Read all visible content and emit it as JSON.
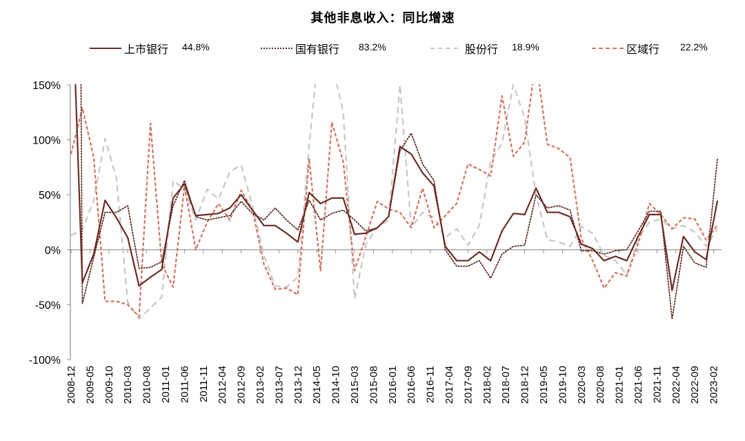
{
  "title": "其他非息收入：同比增速",
  "legend": [
    {
      "label": "上市银行",
      "value": "44.8%"
    },
    {
      "label": "国有银行",
      "value": "83.2%"
    },
    {
      "label": "股份行",
      "value": "18.9%"
    },
    {
      "label": "区域行",
      "value": "22.2%"
    }
  ],
  "colors": {
    "listed": "#6b2b22",
    "state_owned": "#5a2a22",
    "joint_stock": "#c6c6c6",
    "regional": "#d2735c",
    "axis": "#8c8c8c"
  },
  "chart_data": {
    "type": "line",
    "title": "其他非息收入：同比增速",
    "xlabel": "",
    "ylabel": "",
    "ylim": [
      -100,
      150
    ],
    "yticks": [
      150,
      100,
      50,
      0,
      -50,
      -100
    ],
    "ytick_labels": [
      "150%",
      "100%",
      "50%",
      "0%",
      "-50%",
      "-100%"
    ],
    "grid": false,
    "legend_position": "top",
    "xtick_labels": [
      "2008-12",
      "2009-05",
      "2009-10",
      "2010-03",
      "2010-08",
      "2011-01",
      "2011-06",
      "2011-11",
      "2012-04",
      "2012-09",
      "2013-02",
      "2013-07",
      "2013-12",
      "2014-05",
      "2014-10",
      "2015-03",
      "2015-08",
      "2016-01",
      "2016-06",
      "2016-11",
      "2017-04",
      "2017-09",
      "2018-02",
      "2018-07",
      "2018-12",
      "2019-05",
      "2019-10",
      "2020-03",
      "2020-08",
      "2021-01",
      "2021-06",
      "2021-11",
      "2022-04",
      "2022-09",
      "2023-02"
    ],
    "x": [
      "2008-12",
      "2009-03",
      "2009-06",
      "2009-09",
      "2009-12",
      "2010-03",
      "2010-06",
      "2010-09",
      "2010-12",
      "2011-03",
      "2011-06",
      "2011-09",
      "2011-12",
      "2012-03",
      "2012-06",
      "2012-09",
      "2012-12",
      "2013-03",
      "2013-06",
      "2013-09",
      "2013-12",
      "2014-03",
      "2014-06",
      "2014-09",
      "2014-12",
      "2015-03",
      "2015-06",
      "2015-09",
      "2015-12",
      "2016-03",
      "2016-06",
      "2016-09",
      "2016-12",
      "2017-03",
      "2017-06",
      "2017-09",
      "2017-12",
      "2018-03",
      "2018-06",
      "2018-09",
      "2018-12",
      "2019-03",
      "2019-06",
      "2019-09",
      "2019-12",
      "2020-03",
      "2020-06",
      "2020-09",
      "2020-12",
      "2021-03",
      "2021-06",
      "2021-09",
      "2021-12",
      "2022-03",
      "2022-06",
      "2022-09",
      "2022-12",
      "2023-03"
    ],
    "series": [
      {
        "name": "上市银行",
        "style": "solid",
        "latest": "44.8%",
        "values": [
          265,
          -30,
          -4,
          45,
          29,
          11,
          -33,
          -25,
          -18,
          47,
          60,
          31,
          32,
          33,
          38,
          50,
          36,
          22,
          22,
          15,
          7,
          52,
          42,
          47,
          47,
          14,
          15,
          20,
          30,
          94,
          87,
          70,
          58,
          3,
          -10,
          -10,
          -2,
          -10,
          17,
          33,
          32,
          56,
          34,
          34,
          30,
          5,
          1,
          -10,
          -6,
          -10,
          12,
          32,
          32,
          -37,
          12,
          -2,
          -9,
          44.8
        ]
      },
      {
        "name": "国有银行",
        "style": "dotted",
        "latest": "83.2%",
        "values": [
          1600,
          -49,
          -7,
          34,
          34,
          40,
          -17,
          -16,
          -11,
          40,
          63,
          30,
          27,
          29,
          31,
          44,
          33,
          27,
          38,
          27,
          18,
          45,
          27,
          33,
          36,
          27,
          17,
          20,
          30,
          90,
          106,
          78,
          63,
          0,
          -15,
          -15,
          -10,
          -26,
          -4,
          3,
          4,
          50,
          38,
          40,
          36,
          -1,
          -1,
          -4,
          -1,
          0,
          17,
          35,
          35,
          -63,
          3,
          -12,
          -16,
          83.2
        ]
      },
      {
        "name": "股份行",
        "style": "long-dash",
        "latest": "18.9%",
        "values": [
          13,
          18,
          45,
          101,
          65,
          -48,
          -63,
          -53,
          -43,
          63,
          55,
          27,
          55,
          46,
          71,
          77,
          40,
          -5,
          -33,
          -34,
          -25,
          95,
          200,
          170,
          125,
          -45,
          5,
          20,
          27,
          150,
          20,
          34,
          29,
          11,
          19,
          4,
          22,
          80,
          97,
          150,
          120,
          50,
          9,
          7,
          3,
          21,
          15,
          -5,
          -10,
          -23,
          10,
          25,
          28,
          19,
          22,
          16,
          3,
          18.9
        ]
      },
      {
        "name": "区域行",
        "style": "short-dash",
        "latest": "22.2%",
        "values": [
          87,
          129,
          84,
          -47,
          -47,
          -50,
          -61,
          115,
          -13,
          -34,
          58,
          0,
          25,
          42,
          27,
          54,
          36,
          -13,
          -36,
          -35,
          -41,
          83,
          -19,
          116,
          80,
          -19,
          12,
          44,
          37,
          34,
          20,
          56,
          20,
          31,
          42,
          78,
          73,
          67,
          140,
          85,
          98,
          173,
          96,
          92,
          84,
          10,
          -10,
          -35,
          -21,
          -24,
          5,
          42,
          32,
          19,
          29,
          28,
          9,
          22.2
        ]
      }
    ]
  }
}
